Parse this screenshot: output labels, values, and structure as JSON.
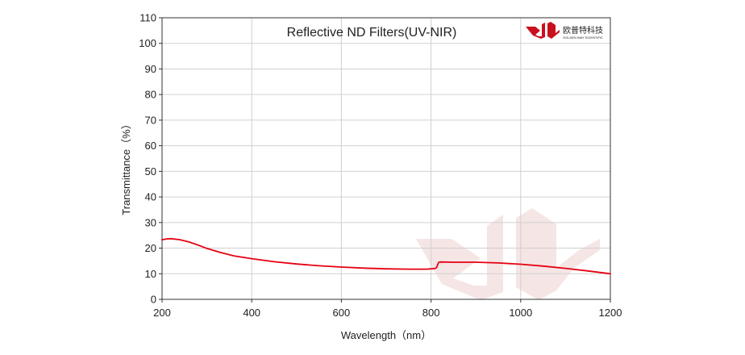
{
  "chart_data": {
    "type": "line",
    "title": "Reflective ND Filters(UV-NIR)",
    "xlabel": "Wavelength（nm）",
    "ylabel": "Transmittance（%）",
    "xlim": [
      200,
      1200
    ],
    "ylim": [
      0,
      110
    ],
    "xticks": [
      200,
      400,
      600,
      800,
      1000,
      1200
    ],
    "yticks": [
      0,
      10,
      20,
      30,
      40,
      50,
      60,
      70,
      80,
      90,
      100,
      110
    ],
    "grid": true,
    "legend": "none",
    "series": [
      {
        "color": "#e60012",
        "points": [
          [
            200,
            23.3
          ],
          [
            210,
            23.6
          ],
          [
            220,
            23.7
          ],
          [
            240,
            23.3
          ],
          [
            260,
            22.4
          ],
          [
            280,
            21.2
          ],
          [
            300,
            19.9
          ],
          [
            330,
            18.3
          ],
          [
            360,
            17.0
          ],
          [
            400,
            15.9
          ],
          [
            450,
            14.7
          ],
          [
            500,
            13.8
          ],
          [
            550,
            13.1
          ],
          [
            600,
            12.6
          ],
          [
            650,
            12.2
          ],
          [
            700,
            11.9
          ],
          [
            750,
            11.8
          ],
          [
            790,
            11.8
          ],
          [
            800,
            11.9
          ],
          [
            810,
            12.1
          ],
          [
            813,
            12.6
          ],
          [
            815,
            13.6
          ],
          [
            817,
            14.4
          ],
          [
            820,
            14.6
          ],
          [
            850,
            14.5
          ],
          [
            900,
            14.5
          ],
          [
            950,
            14.2
          ],
          [
            1000,
            13.7
          ],
          [
            1050,
            13.0
          ],
          [
            1100,
            12.1
          ],
          [
            1150,
            11.1
          ],
          [
            1200,
            10.0
          ]
        ]
      }
    ]
  },
  "logo": {
    "text_cn": "欧普特科技",
    "text_en": "GOLDEN WAY SCIENTIFIC",
    "color": "#c8101e"
  },
  "watermark": {
    "color": "#f5e5e5"
  }
}
